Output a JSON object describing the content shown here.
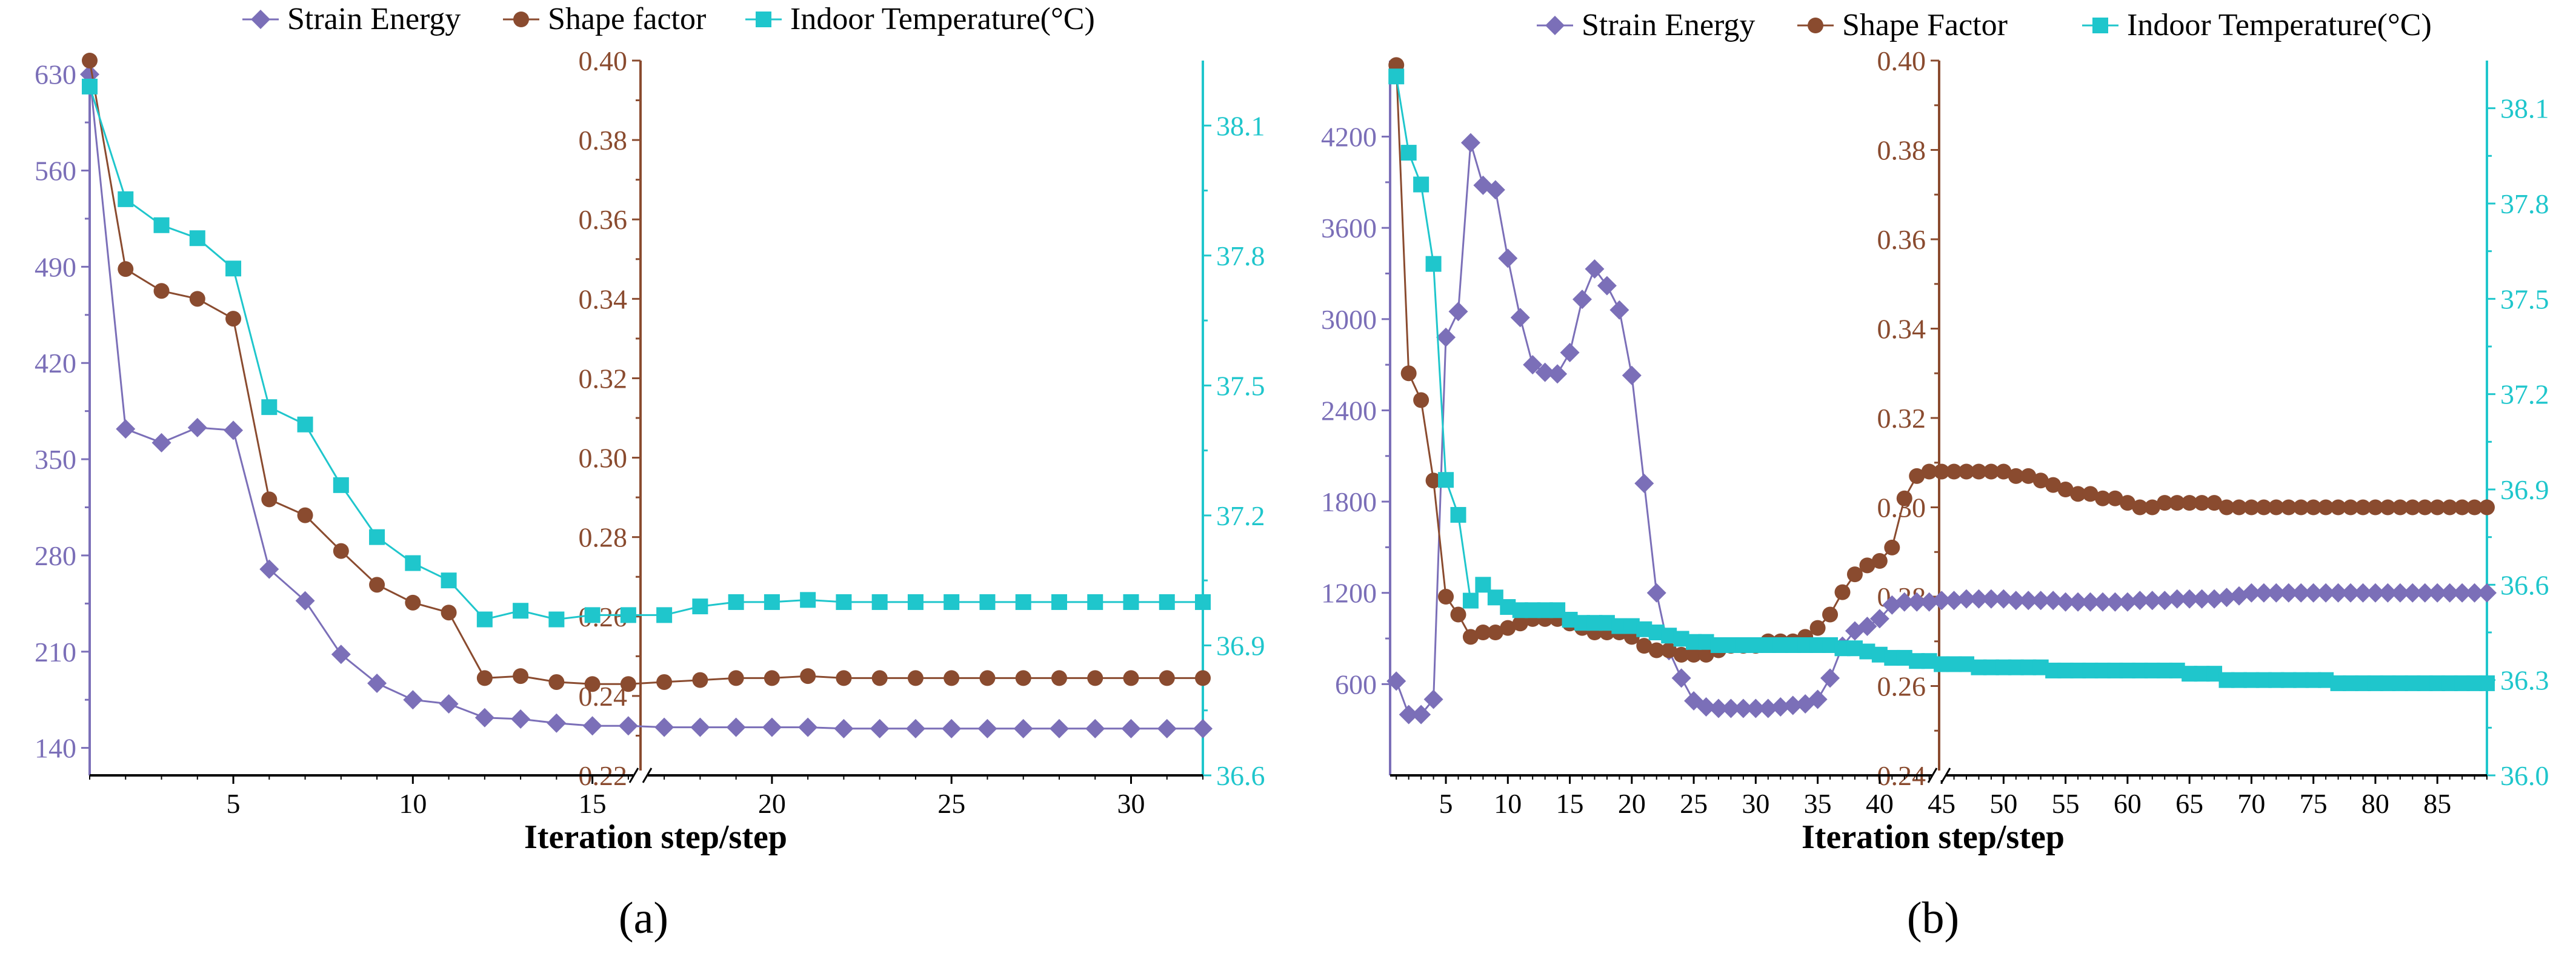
{
  "colors": {
    "strain": "#7b6fb8",
    "shape": "#8a4b2f",
    "temp": "#1fc6cc",
    "axis": "#000000"
  },
  "chart_data": [
    {
      "type": "line",
      "panel_label": "(a)",
      "xlabel": "Iteration step/step",
      "xlim": [
        1,
        32
      ],
      "xticks": [
        5,
        10,
        15,
        20,
        25,
        30
      ],
      "x_axis_break": [
        16,
        17
      ],
      "legend": [
        "Strain Energy",
        "Shape factor",
        "Indoor Temperature(°C)"
      ],
      "axes": [
        {
          "series": "Strain Energy",
          "ylim": [
            120,
            640
          ],
          "ticks": [
            140,
            210,
            280,
            350,
            420,
            490,
            560,
            630
          ],
          "decimals": 0
        },
        {
          "series": "Shape factor",
          "ylim": [
            0.22,
            0.4
          ],
          "ticks": [
            0.22,
            0.24,
            0.26,
            0.28,
            0.3,
            0.32,
            0.34,
            0.36,
            0.38,
            0.4
          ],
          "decimals": 2
        },
        {
          "series": "Indoor Temperature(°C)",
          "ylim": [
            36.6,
            38.25
          ],
          "ticks": [
            36.6,
            36.9,
            37.2,
            37.5,
            37.8,
            38.1
          ],
          "decimals": 1
        }
      ],
      "series": [
        {
          "name": "Strain Energy",
          "marker": "diamond",
          "x": [
            1,
            2,
            3,
            4,
            5,
            6,
            7,
            8,
            9,
            10,
            11,
            12,
            13,
            14,
            15,
            16,
            17,
            18,
            19,
            20,
            21,
            22,
            23,
            24,
            25,
            26,
            27,
            28,
            29,
            30,
            31,
            32
          ],
          "values": [
            630,
            372,
            362,
            373,
            371,
            270,
            247,
            208,
            187,
            175,
            172,
            162,
            161,
            158,
            156,
            156,
            155,
            155,
            155,
            155,
            155,
            154,
            154,
            154,
            154,
            154,
            154,
            154,
            154,
            154,
            154,
            154
          ]
        },
        {
          "name": "Shape factor",
          "marker": "circle",
          "x": [
            1,
            2,
            3,
            4,
            5,
            6,
            7,
            8,
            9,
            10,
            11,
            12,
            13,
            14,
            15,
            16,
            17,
            18,
            19,
            20,
            21,
            22,
            23,
            24,
            25,
            26,
            27,
            28,
            29,
            30,
            31,
            32
          ],
          "values": [
            0.4,
            0.3475,
            0.342,
            0.34,
            0.335,
            0.2895,
            0.2855,
            0.2765,
            0.268,
            0.2635,
            0.261,
            0.2445,
            0.245,
            0.2435,
            0.243,
            0.243,
            0.2435,
            0.244,
            0.2445,
            0.2445,
            0.245,
            0.2445,
            0.2445,
            0.2445,
            0.2445,
            0.2445,
            0.2445,
            0.2445,
            0.2445,
            0.2445,
            0.2445,
            0.2445
          ]
        },
        {
          "name": "Indoor Temperature(°C)",
          "marker": "square",
          "x": [
            1,
            2,
            3,
            4,
            5,
            6,
            7,
            8,
            9,
            10,
            11,
            12,
            13,
            14,
            15,
            16,
            17,
            18,
            19,
            20,
            21,
            22,
            23,
            24,
            25,
            26,
            27,
            28,
            29,
            30,
            31,
            32
          ],
          "values": [
            38.19,
            37.93,
            37.87,
            37.84,
            37.77,
            37.45,
            37.41,
            37.27,
            37.15,
            37.09,
            37.05,
            36.96,
            36.98,
            36.96,
            36.97,
            36.97,
            36.97,
            36.99,
            37.0,
            37.0,
            37.005,
            37.0,
            37.0,
            37.0,
            37.0,
            37.0,
            37.0,
            37.0,
            37.0,
            37.0,
            37.0,
            37.0
          ]
        }
      ]
    },
    {
      "type": "line",
      "panel_label": "(b)",
      "xlabel": "Iteration step/step",
      "xlim": [
        0.5,
        89
      ],
      "xticks": [
        5,
        10,
        15,
        20,
        25,
        30,
        35,
        40,
        45,
        50,
        55,
        60,
        65,
        70,
        75,
        80,
        85
      ],
      "x_axis_break": [
        44,
        46
      ],
      "legend": [
        "Strain Energy",
        "Shape Factor",
        "Indoor Temperature(°C)"
      ],
      "axes": [
        {
          "series": "Strain Energy",
          "ylim": [
            0,
            4700
          ],
          "ticks": [
            600,
            1200,
            1800,
            2400,
            3000,
            3600,
            4200
          ],
          "decimals": 0
        },
        {
          "series": "Shape Factor",
          "ylim": [
            0.24,
            0.4
          ],
          "ticks": [
            0.24,
            0.26,
            0.28,
            0.3,
            0.32,
            0.34,
            0.36,
            0.38,
            0.4
          ],
          "decimals": 2
        },
        {
          "series": "Indoor Temperature(°C)",
          "ylim": [
            36.0,
            38.25
          ],
          "ticks": [
            36.0,
            36.3,
            36.6,
            36.9,
            37.2,
            37.5,
            37.8,
            38.1
          ],
          "decimals": 1
        }
      ],
      "series": [
        {
          "name": "Strain Energy",
          "marker": "diamond",
          "x": [
            1,
            2,
            3,
            4,
            5,
            6,
            7,
            8,
            9,
            10,
            11,
            12,
            13,
            14,
            15,
            16,
            17,
            18,
            19,
            20,
            21,
            22,
            23,
            24,
            25,
            26,
            27,
            28,
            29,
            30,
            31,
            32,
            33,
            34,
            35,
            36,
            37,
            38,
            39,
            40,
            41,
            42,
            43,
            44,
            45,
            46,
            47,
            48,
            49,
            50,
            51,
            52,
            53,
            54,
            55,
            56,
            57,
            58,
            59,
            60,
            61,
            62,
            63,
            64,
            65,
            66,
            67,
            68,
            69,
            70,
            71,
            72,
            73,
            74,
            75,
            76,
            77,
            78,
            79,
            80,
            81,
            82,
            83,
            84,
            85,
            86,
            87,
            88,
            89
          ],
          "values": [
            620,
            400,
            400,
            500,
            2880,
            3050,
            4160,
            3880,
            3850,
            3400,
            3010,
            2700,
            2650,
            2640,
            2780,
            3130,
            3330,
            3220,
            3060,
            2630,
            1920,
            1200,
            820,
            640,
            490,
            450,
            440,
            440,
            440,
            440,
            440,
            450,
            460,
            470,
            500,
            640,
            850,
            950,
            980,
            1030,
            1120,
            1140,
            1140,
            1140,
            1150,
            1150,
            1160,
            1160,
            1160,
            1160,
            1150,
            1150,
            1150,
            1150,
            1140,
            1140,
            1140,
            1140,
            1140,
            1140,
            1150,
            1150,
            1150,
            1160,
            1160,
            1160,
            1160,
            1170,
            1180,
            1200,
            1200,
            1200,
            1200,
            1200,
            1200,
            1200,
            1200,
            1200,
            1200,
            1200,
            1200,
            1200,
            1200,
            1200,
            1200,
            1200,
            1200,
            1200,
            1200
          ]
        },
        {
          "name": "Shape Factor",
          "marker": "circle",
          "x": [
            1,
            2,
            3,
            4,
            5,
            6,
            7,
            8,
            9,
            10,
            11,
            12,
            13,
            14,
            15,
            16,
            17,
            18,
            19,
            20,
            21,
            22,
            23,
            24,
            25,
            26,
            27,
            28,
            29,
            30,
            31,
            32,
            33,
            34,
            35,
            36,
            37,
            38,
            39,
            40,
            41,
            42,
            43,
            44,
            45,
            46,
            47,
            48,
            49,
            50,
            51,
            52,
            53,
            54,
            55,
            56,
            57,
            58,
            59,
            60,
            61,
            62,
            63,
            64,
            65,
            66,
            67,
            68,
            69,
            70,
            71,
            72,
            73,
            74,
            75,
            76,
            77,
            78,
            79,
            80,
            81,
            82,
            83,
            84,
            85,
            86,
            87,
            88,
            89
          ],
          "values": [
            0.399,
            0.33,
            0.324,
            0.306,
            0.28,
            0.276,
            0.271,
            0.272,
            0.272,
            0.273,
            0.274,
            0.275,
            0.275,
            0.275,
            0.274,
            0.273,
            0.272,
            0.272,
            0.272,
            0.271,
            0.269,
            0.268,
            0.268,
            0.267,
            0.267,
            0.267,
            0.268,
            0.269,
            0.269,
            0.269,
            0.27,
            0.27,
            0.27,
            0.271,
            0.273,
            0.276,
            0.281,
            0.285,
            0.287,
            0.288,
            0.291,
            0.302,
            0.307,
            0.308,
            0.308,
            0.308,
            0.308,
            0.308,
            0.308,
            0.308,
            0.307,
            0.307,
            0.306,
            0.305,
            0.304,
            0.303,
            0.303,
            0.302,
            0.302,
            0.301,
            0.3,
            0.3,
            0.301,
            0.301,
            0.301,
            0.301,
            0.301,
            0.3,
            0.3,
            0.3,
            0.3,
            0.3,
            0.3,
            0.3,
            0.3,
            0.3,
            0.3,
            0.3,
            0.3,
            0.3,
            0.3,
            0.3,
            0.3,
            0.3,
            0.3,
            0.3,
            0.3,
            0.3,
            0.3
          ]
        },
        {
          "name": "Indoor Temperature(°C)",
          "marker": "square",
          "x": [
            1,
            2,
            3,
            4,
            5,
            6,
            7,
            8,
            9,
            10,
            11,
            12,
            13,
            14,
            15,
            16,
            17,
            18,
            19,
            20,
            21,
            22,
            23,
            24,
            25,
            26,
            27,
            28,
            29,
            30,
            31,
            32,
            33,
            34,
            35,
            36,
            37,
            38,
            39,
            40,
            41,
            42,
            43,
            44,
            45,
            46,
            47,
            48,
            49,
            50,
            51,
            52,
            53,
            54,
            55,
            56,
            57,
            58,
            59,
            60,
            61,
            62,
            63,
            64,
            65,
            66,
            67,
            68,
            69,
            70,
            71,
            72,
            73,
            74,
            75,
            76,
            77,
            78,
            79,
            80,
            81,
            82,
            83,
            84,
            85,
            86,
            87,
            88,
            89
          ],
          "values": [
            38.2,
            37.96,
            37.86,
            37.61,
            36.93,
            36.82,
            36.55,
            36.6,
            36.56,
            36.53,
            36.52,
            36.52,
            36.52,
            36.52,
            36.49,
            36.48,
            36.48,
            36.48,
            36.47,
            36.47,
            36.46,
            36.45,
            36.44,
            36.43,
            36.42,
            36.42,
            36.41,
            36.41,
            36.41,
            36.41,
            36.41,
            36.41,
            36.41,
            36.41,
            36.41,
            36.41,
            36.4,
            36.4,
            36.39,
            36.38,
            36.37,
            36.37,
            36.36,
            36.36,
            36.35,
            36.35,
            36.35,
            36.34,
            36.34,
            36.34,
            36.34,
            36.34,
            36.34,
            36.33,
            36.33,
            36.33,
            36.33,
            36.33,
            36.33,
            36.33,
            36.33,
            36.33,
            36.33,
            36.33,
            36.32,
            36.32,
            36.32,
            36.3,
            36.3,
            36.3,
            36.3,
            36.3,
            36.3,
            36.3,
            36.3,
            36.3,
            36.29,
            36.29,
            36.29,
            36.29,
            36.29,
            36.29,
            36.29,
            36.29,
            36.29,
            36.29,
            36.29,
            36.29,
            36.29
          ]
        }
      ]
    }
  ]
}
